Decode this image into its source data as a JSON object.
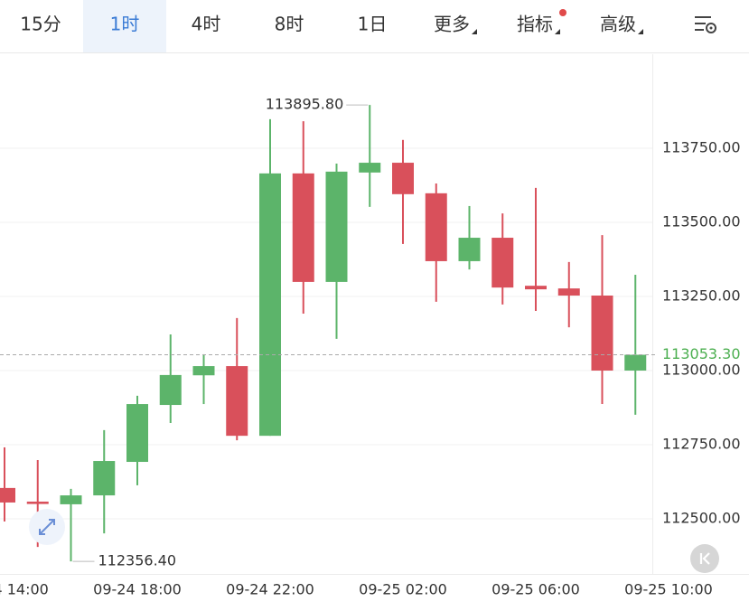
{
  "tabs": {
    "items": [
      "15分",
      "1时",
      "4时",
      "8时",
      "1日",
      "更多",
      "指标",
      "高级"
    ],
    "active": "1时"
  },
  "chart_data": {
    "type": "candlestick",
    "x_labels": [
      "09-24 14:00",
      "09-24 18:00",
      "09-24 22:00",
      "09-25 02:00",
      "09-25 06:00",
      "09-25 10:00"
    ],
    "open": [
      112604,
      112558,
      112549,
      112579,
      112692,
      112884,
      112984,
      113015,
      112780,
      113665,
      113299,
      113668,
      113701,
      113598,
      113369,
      113448,
      113286,
      113277,
      113253,
      113000
    ],
    "high": [
      112741,
      112698,
      112601,
      112799,
      112915,
      113122,
      113055,
      113177,
      113848,
      113841,
      113698,
      113895.8,
      113778,
      113631,
      113555,
      113530,
      113616,
      113366,
      113457,
      113323
    ],
    "low": [
      112491,
      112405,
      112356.4,
      112451,
      112613,
      112823,
      112887,
      112765,
      112780,
      113192,
      113107,
      113552,
      113427,
      113232,
      113341,
      113223,
      113201,
      113146,
      112887,
      112851
    ],
    "close": [
      112555,
      112550,
      112579,
      112695,
      112887,
      112985,
      113015,
      112780,
      113665,
      113299,
      113671,
      113701,
      113595,
      113369,
      113448,
      113280,
      113274,
      113253,
      113000,
      113053.3
    ],
    "up_color": "#5cb46a",
    "down_color": "#d9505b",
    "ylim": [
      112314,
      114067
    ],
    "yticks": [
      {
        "value": 112500,
        "label": "112500.00"
      },
      {
        "value": 112750,
        "label": "112750.00"
      },
      {
        "value": 113000,
        "label": "113000.00"
      },
      {
        "value": 113250,
        "label": "113250.00"
      },
      {
        "value": 113500,
        "label": "113500.00"
      },
      {
        "value": 113750,
        "label": "113750.00"
      }
    ],
    "grid": true,
    "max_annotation": {
      "value": 113895.8,
      "label": "113895.80"
    },
    "min_annotation": {
      "value": 112356.4,
      "label": "112356.40"
    },
    "last_price": {
      "value": 113053.3,
      "label": "113053.30",
      "color": "#4caf50"
    }
  }
}
